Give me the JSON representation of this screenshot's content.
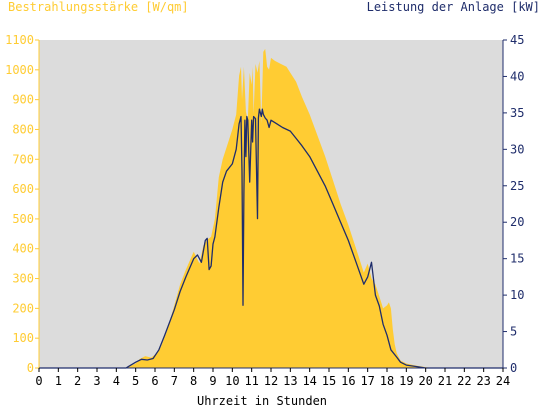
{
  "chart_data": {
    "type": "area",
    "left_axis_label": "Bestrahlungsstärke [W/qm]",
    "right_axis_label": "Leistung der Anlage [kW]",
    "xlabel": "Uhrzeit in Stunden",
    "xlim": [
      0,
      24
    ],
    "x_ticks": [
      "0",
      "1",
      "2",
      "3",
      "4",
      "5",
      "6",
      "7",
      "8",
      "9",
      "10",
      "11",
      "12",
      "13",
      "14",
      "15",
      "16",
      "17",
      "18",
      "19",
      "20",
      "21",
      "22",
      "23",
      "24"
    ],
    "ylim_left": [
      0,
      1100
    ],
    "left_ticks": [
      "0",
      "100",
      "200",
      "300",
      "400",
      "500",
      "600",
      "700",
      "800",
      "900",
      "1000",
      "1100"
    ],
    "ylim_right": [
      0,
      45
    ],
    "right_ticks": [
      "0",
      "5",
      "10",
      "15",
      "20",
      "25",
      "30",
      "35",
      "40",
      "45"
    ],
    "grid": false,
    "colors": {
      "plot_background": "#dcdcdc",
      "irradiance_fill": "#ffcc33",
      "power_line": "#1f2d6b",
      "left_axis": "#ffcc33",
      "right_axis": "#1f2d6b"
    },
    "series": [
      {
        "axis": "left",
        "style": "filled-area",
        "x": [
          0,
          4.5,
          5.0,
          5.2,
          5.5,
          5.8,
          6.0,
          6.3,
          6.6,
          7.0,
          7.3,
          7.6,
          8.0,
          8.3,
          8.5,
          8.7,
          8.9,
          9.0,
          9.1,
          9.3,
          9.5,
          9.8,
          10.0,
          10.2,
          10.35,
          10.45,
          10.5,
          10.6,
          10.7,
          10.8,
          10.9,
          11.0,
          11.05,
          11.1,
          11.2,
          11.3,
          11.4,
          11.5,
          11.6,
          11.7,
          11.75,
          11.8,
          11.9,
          12.0,
          12.2,
          12.5,
          12.8,
          13.0,
          13.3,
          13.6,
          14.0,
          14.4,
          14.8,
          15.2,
          15.6,
          16.0,
          16.4,
          16.8,
          17.0,
          17.2,
          17.4,
          17.6,
          17.8,
          18.0,
          18.1,
          18.2,
          18.3,
          18.4,
          18.5,
          18.7,
          19.0,
          19.5,
          20.0,
          20.3,
          20.5,
          24
        ],
        "y": [
          0,
          0,
          15,
          30,
          40,
          35,
          45,
          70,
          120,
          210,
          280,
          330,
          390,
          350,
          410,
          430,
          440,
          470,
          500,
          640,
          700,
          760,
          800,
          850,
          980,
          1010,
          900,
          1010,
          860,
          830,
          990,
          950,
          1010,
          850,
          1020,
          990,
          1030,
          820,
          1060,
          1070,
          1040,
          1010,
          1000,
          1040,
          1030,
          1020,
          1010,
          990,
          960,
          910,
          850,
          780,
          710,
          630,
          550,
          480,
          400,
          320,
          350,
          300,
          280,
          240,
          200,
          210,
          220,
          200,
          130,
          80,
          50,
          25,
          15,
          8,
          3,
          0,
          0,
          0
        ]
      },
      {
        "axis": "right",
        "style": "line",
        "x": [
          0,
          4.5,
          5.0,
          5.3,
          5.6,
          5.9,
          6.2,
          6.5,
          7.0,
          7.3,
          7.6,
          8.0,
          8.2,
          8.4,
          8.5,
          8.6,
          8.7,
          8.8,
          8.9,
          9.0,
          9.1,
          9.3,
          9.5,
          9.7,
          10.0,
          10.2,
          10.35,
          10.45,
          10.5,
          10.55,
          10.6,
          10.65,
          10.7,
          10.75,
          10.8,
          10.9,
          11.0,
          11.05,
          11.1,
          11.2,
          11.3,
          11.35,
          11.4,
          11.5,
          11.55,
          11.6,
          11.7,
          11.8,
          11.9,
          12.0,
          12.3,
          12.6,
          13.0,
          13.3,
          13.6,
          14.0,
          14.4,
          14.8,
          15.2,
          15.6,
          16.0,
          16.4,
          16.8,
          17.0,
          17.2,
          17.4,
          17.6,
          17.8,
          18.0,
          18.2,
          18.5,
          18.7,
          19.0,
          19.5,
          20.0,
          20.3,
          24
        ],
        "y": [
          0,
          0,
          0.8,
          1.2,
          1.1,
          1.3,
          2.5,
          4.5,
          8.0,
          10.5,
          12.5,
          15.0,
          15.5,
          14.5,
          16.0,
          17.5,
          17.8,
          13.5,
          14.0,
          17.0,
          18.0,
          22.0,
          25.5,
          27.0,
          28.0,
          30.0,
          33.5,
          34.5,
          27.0,
          8.6,
          24.0,
          34.0,
          29.0,
          34.5,
          34.0,
          25.5,
          34.0,
          31.0,
          34.5,
          34.2,
          20.5,
          34.3,
          35.5,
          34.5,
          35.5,
          34.8,
          34.3,
          34.0,
          33.0,
          34.0,
          33.5,
          33.0,
          32.5,
          31.5,
          30.5,
          29.0,
          27.0,
          25.0,
          22.5,
          20.0,
          17.5,
          14.5,
          11.5,
          12.5,
          14.5,
          10.0,
          8.5,
          6.0,
          4.5,
          2.5,
          1.5,
          0.8,
          0.4,
          0.2,
          0,
          0,
          0
        ]
      }
    ]
  }
}
